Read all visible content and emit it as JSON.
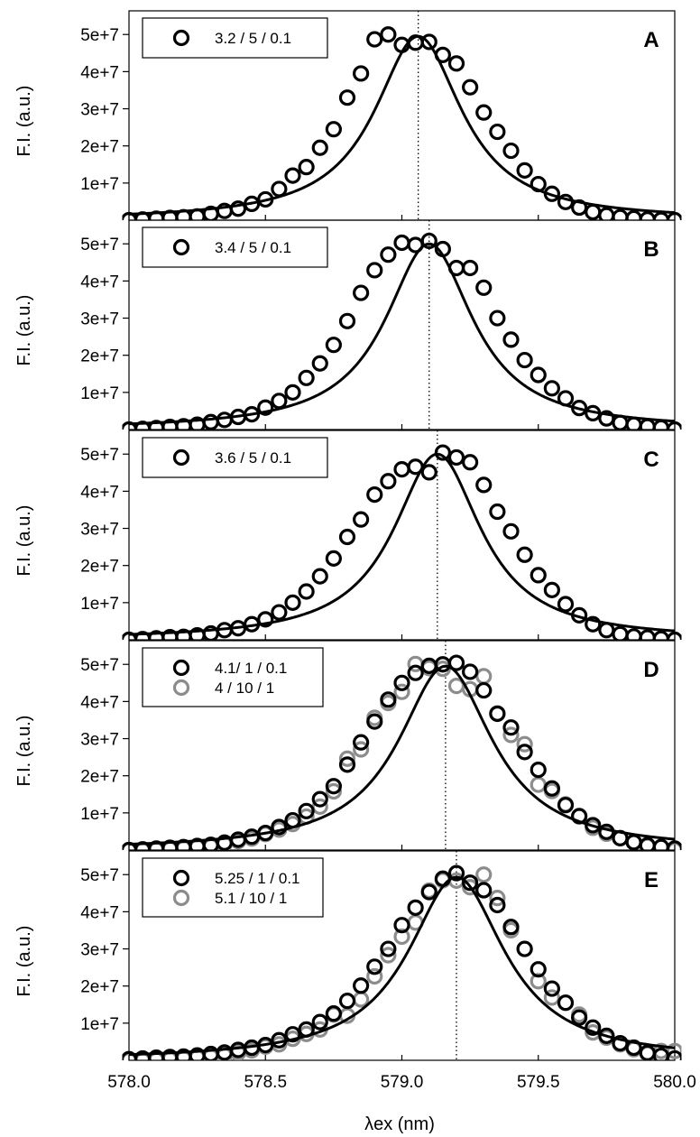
{
  "chart_data": {
    "type": "scatter",
    "layout": "5 stacked panels sharing the x axis",
    "xlabel": "λex (nm)",
    "ylabel": "F.I. (a.u.)",
    "xlim": [
      578.0,
      580.0
    ],
    "x_ticks": [
      578.0,
      578.5,
      579.0,
      579.5,
      580.0
    ],
    "x_tick_labels": [
      "578.0",
      "578.5",
      "579.0",
      "579.5",
      "580.0"
    ],
    "ylim": [
      0,
      52000000
    ],
    "y_ticks": [
      10000000,
      20000000,
      30000000,
      40000000,
      50000000
    ],
    "y_tick_labels": [
      "1e+7",
      "2e+7",
      "3e+7",
      "4e+7",
      "5e+7"
    ],
    "colors": {
      "dark": "#000000",
      "gray": "#8c8c8c",
      "fit": "#000000"
    },
    "grid": false,
    "panels": [
      {
        "label": "A",
        "peak_marker": 579.06,
        "legend": [
          {
            "text": "3.2 / 5 / 0.1",
            "color": "#000000"
          }
        ],
        "fit": {
          "center": 579.06,
          "amplitude": 49500000,
          "gamma": 0.195
        },
        "series": [
          {
            "name": "3.2 / 5 / 0.1",
            "color": "#000000",
            "x": [
              578.0,
              578.05,
              578.1,
              578.15,
              578.2,
              578.25,
              578.3,
              578.35,
              578.4,
              578.45,
              578.5,
              578.55,
              578.6,
              578.65,
              578.7,
              578.75,
              578.8,
              578.85,
              578.9,
              578.95,
              579.0,
              579.05,
              579.1,
              579.15,
              579.2,
              579.25,
              579.3,
              579.35,
              579.4,
              579.45,
              579.5,
              579.55,
              579.6,
              579.65,
              579.7,
              579.75,
              579.8,
              579.85,
              579.9,
              579.95,
              580.0
            ],
            "y": [
              0,
              200000,
              400000,
              600000,
              800000,
              1000000,
              1700000,
              2500000,
              3100000,
              4400000,
              5600000,
              8400000,
              12000000,
              14300000,
              19500000,
              24500000,
              33000000,
              39500000,
              48700000,
              50000000,
              47200000,
              47800000,
              48000000,
              44500000,
              42200000,
              35800000,
              29000000,
              23800000,
              18700000,
              13400000,
              9700000,
              7100000,
              4900000,
              3400000,
              2200000,
              1300000,
              800000,
              500000,
              200000,
              100000,
              0
            ]
          }
        ]
      },
      {
        "label": "B",
        "peak_marker": 579.1,
        "legend": [
          {
            "text": "3.4 / 5 / 0.1",
            "color": "#000000"
          }
        ],
        "fit": {
          "center": 579.1,
          "amplitude": 50000000,
          "gamma": 0.195
        },
        "series": [
          {
            "name": "3.4 / 5 / 0.1",
            "color": "#000000",
            "x": [
              578.0,
              578.05,
              578.1,
              578.15,
              578.2,
              578.25,
              578.3,
              578.35,
              578.4,
              578.45,
              578.5,
              578.55,
              578.6,
              578.65,
              578.7,
              578.75,
              578.8,
              578.85,
              578.9,
              578.95,
              579.0,
              579.05,
              579.1,
              579.15,
              579.2,
              579.25,
              579.3,
              579.35,
              579.4,
              579.45,
              579.5,
              579.55,
              579.6,
              579.65,
              579.7,
              579.75,
              579.8,
              579.85,
              579.9,
              579.95,
              580.0
            ],
            "y": [
              0,
              200000,
              400000,
              700000,
              900000,
              1300000,
              2000000,
              2600000,
              3400000,
              4100000,
              5900000,
              7700000,
              10000000,
              13900000,
              17800000,
              22800000,
              29200000,
              36800000,
              42900000,
              47100000,
              50300000,
              49700000,
              50800000,
              48600000,
              43500000,
              43500000,
              38200000,
              30000000,
              24200000,
              18700000,
              14700000,
              11100000,
              8400000,
              5800000,
              4400000,
              3000000,
              1800000,
              1300000,
              800000,
              500000,
              0
            ]
          }
        ]
      },
      {
        "label": "C",
        "peak_marker": 579.13,
        "legend": [
          {
            "text": "3.6 / 5 / 0.1",
            "color": "#000000"
          }
        ],
        "fit": {
          "center": 579.13,
          "amplitude": 50000000,
          "gamma": 0.195
        },
        "series": [
          {
            "name": "3.6 / 5 / 0.1",
            "color": "#000000",
            "x": [
              578.0,
              578.05,
              578.1,
              578.15,
              578.2,
              578.25,
              578.3,
              578.35,
              578.4,
              578.45,
              578.5,
              578.55,
              578.6,
              578.65,
              578.7,
              578.75,
              578.8,
              578.85,
              578.9,
              578.95,
              579.0,
              579.05,
              579.1,
              579.15,
              579.2,
              579.25,
              579.3,
              579.35,
              579.4,
              579.45,
              579.5,
              579.55,
              579.6,
              579.65,
              579.7,
              579.75,
              579.8,
              579.85,
              579.9,
              579.95,
              580.0
            ],
            "y": [
              0,
              200000,
              400000,
              700000,
              800000,
              1200000,
              1700000,
              2600000,
              3100000,
              4200000,
              5500000,
              7400000,
              10000000,
              13000000,
              17100000,
              21900000,
              27700000,
              32400000,
              39100000,
              42700000,
              45900000,
              46600000,
              45100000,
              50400000,
              49100000,
              47800000,
              41700000,
              34500000,
              29200000,
              22900000,
              17400000,
              13400000,
              9600000,
              6600000,
              4200000,
              2600000,
              1500000,
              900000,
              600000,
              300000,
              0
            ]
          }
        ]
      },
      {
        "label": "D",
        "peak_marker": 579.16,
        "legend": [
          {
            "text": "4.1/ 1 / 0.1",
            "color": "#000000"
          },
          {
            "text": "4 / 10 / 1",
            "color": "#8c8c8c"
          }
        ],
        "fit": {
          "center": 579.16,
          "amplitude": 49500000,
          "gamma": 0.21
        },
        "series": [
          {
            "name": "4.1/ 1 / 0.1",
            "color": "#000000",
            "x": [
              578.0,
              578.05,
              578.1,
              578.15,
              578.2,
              578.25,
              578.3,
              578.35,
              578.4,
              578.45,
              578.5,
              578.55,
              578.6,
              578.65,
              578.7,
              578.75,
              578.8,
              578.85,
              578.9,
              578.95,
              579.0,
              579.05,
              579.1,
              579.15,
              579.2,
              579.25,
              579.3,
              579.35,
              579.4,
              579.45,
              579.5,
              579.55,
              579.6,
              579.65,
              579.7,
              579.75,
              579.8,
              579.85,
              579.9,
              579.95,
              580.0
            ],
            "y": [
              0,
              200000,
              400000,
              600000,
              800000,
              1100000,
              1400000,
              2000000,
              2800000,
              3600000,
              4600000,
              6200000,
              8000000,
              10500000,
              13700000,
              17200000,
              23000000,
              29000000,
              34600000,
              40500000,
              45000000,
              47700000,
              49600000,
              50000000,
              50400000,
              48000000,
              43000000,
              36700000,
              33000000,
              26400000,
              21600000,
              16600000,
              12100000,
              9100000,
              6700000,
              4900000,
              3200000,
              2100000,
              1300000,
              800000,
              400000
            ]
          },
          {
            "name": "4 / 10 / 1",
            "color": "#8c8c8c",
            "x": [
              578.0,
              578.05,
              578.1,
              578.15,
              578.2,
              578.25,
              578.3,
              578.35,
              578.4,
              578.45,
              578.5,
              578.55,
              578.6,
              578.65,
              578.7,
              578.75,
              578.8,
              578.85,
              578.9,
              578.95,
              579.0,
              579.05,
              579.1,
              579.15,
              579.2,
              579.25,
              579.3,
              579.35,
              579.4,
              579.45,
              579.5,
              579.55,
              579.6,
              579.65,
              579.7,
              579.75,
              579.8,
              579.85,
              579.9,
              579.95,
              580.0
            ],
            "y": [
              0,
              0,
              100000,
              300000,
              500000,
              800000,
              1000000,
              1600000,
              2400000,
              3100000,
              4300000,
              5500000,
              7000000,
              9000000,
              11700000,
              15800000,
              24600000,
              27100000,
              35600000,
              39600000,
              42600000,
              50100000,
              49000000,
              48800000,
              44200000,
              43300000,
              46800000,
              36800000,
              31000000,
              28500000,
              17600000,
              15900000,
              12300000,
              9200000,
              6000000,
              4400000,
              3200000,
              2100000,
              1100000,
              800000,
              0
            ]
          }
        ]
      },
      {
        "label": "E",
        "peak_marker": 579.2,
        "legend": [
          {
            "text": "5.25 / 1 / 0.1",
            "color": "#000000"
          },
          {
            "text": "5.1 / 10 / 1",
            "color": "#8c8c8c"
          }
        ],
        "fit": {
          "center": 579.2,
          "amplitude": 49300000,
          "gamma": 0.215
        },
        "series": [
          {
            "name": "5.25 / 1 / 0.1",
            "color": "#000000",
            "x": [
              578.0,
              578.05,
              578.1,
              578.15,
              578.2,
              578.25,
              578.3,
              578.35,
              578.4,
              578.45,
              578.5,
              578.55,
              578.6,
              578.65,
              578.7,
              578.75,
              578.8,
              578.85,
              578.9,
              578.95,
              579.0,
              579.05,
              579.1,
              579.15,
              579.2,
              579.25,
              579.3,
              579.35,
              579.4,
              579.45,
              579.5,
              579.55,
              579.6,
              579.65,
              579.7,
              579.75,
              579.8,
              579.85,
              579.9,
              579.95,
              580.0
            ],
            "y": [
              300000,
              500000,
              700000,
              900000,
              1000000,
              1300000,
              1700000,
              2100000,
              2800000,
              3400000,
              4100000,
              5400000,
              7000000,
              8300000,
              10300000,
              12600000,
              16000000,
              20100000,
              25200000,
              30000000,
              36400000,
              41100000,
              45300000,
              48900000,
              50400000,
              47800000,
              45800000,
              41800000,
              35900000,
              30000000,
              24500000,
              19300000,
              15500000,
              11500000,
              8800000,
              6600000,
              4600000,
              3400000,
              2000000,
              1200000,
              500000
            ]
          },
          {
            "name": "5.1 / 10 / 1",
            "color": "#8c8c8c",
            "x": [
              578.0,
              578.05,
              578.1,
              578.15,
              578.2,
              578.25,
              578.3,
              578.35,
              578.4,
              578.45,
              578.5,
              578.55,
              578.6,
              578.65,
              578.7,
              578.75,
              578.8,
              578.85,
              578.9,
              578.95,
              579.0,
              579.05,
              579.1,
              579.15,
              579.2,
              579.25,
              579.3,
              579.35,
              579.4,
              579.45,
              579.5,
              579.55,
              579.6,
              579.65,
              579.7,
              579.75,
              579.8,
              579.85,
              579.9,
              579.95,
              580.0
            ],
            "y": [
              0,
              0,
              100000,
              300000,
              500000,
              800000,
              1000000,
              1300000,
              2000000,
              2700000,
              3700000,
              4300000,
              5800000,
              7100000,
              8300000,
              12300000,
              12000000,
              16400000,
              22600000,
              28300000,
              33300000,
              37100000,
              45700000,
              48500000,
              48400000,
              46600000,
              50000000,
              43700000,
              35000000,
              30000000,
              21300000,
              16900000,
              15500000,
              12300000,
              7500000,
              6100000,
              4300000,
              3000000,
              1800000,
              2500000,
              2500000
            ]
          }
        ]
      }
    ]
  }
}
